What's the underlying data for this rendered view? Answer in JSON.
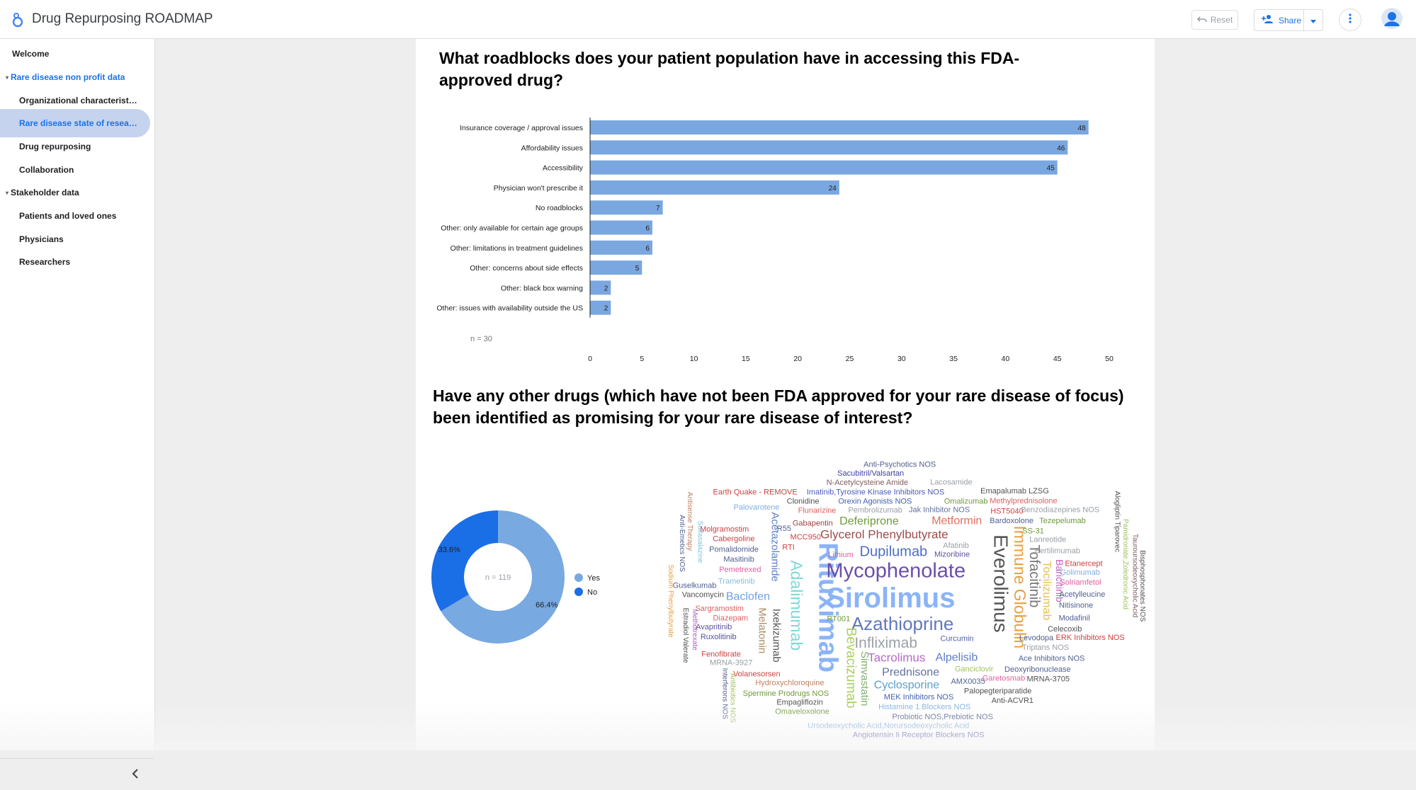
{
  "header": {
    "title": "Drug Repurposing ROADMAP",
    "reset_label": "Reset",
    "share_label": "Share"
  },
  "sidebar": {
    "items": [
      {
        "label": "Welcome",
        "type": "page",
        "level": 0
      },
      {
        "label": "Rare disease non profit data",
        "type": "section",
        "expanded": true,
        "active": true
      },
      {
        "label": "Organizational characteristi...",
        "type": "page",
        "level": 1
      },
      {
        "label": "Rare disease state of resear...",
        "type": "page",
        "level": 1,
        "selected": true
      },
      {
        "label": "Drug repurposing",
        "type": "page",
        "level": 1
      },
      {
        "label": "Collaboration",
        "type": "page",
        "level": 1
      },
      {
        "label": "Stakeholder data",
        "type": "section",
        "expanded": true
      },
      {
        "label": "Patients and loved ones",
        "type": "page",
        "level": 1
      },
      {
        "label": "Physicians",
        "type": "page",
        "level": 1
      },
      {
        "label": "Researchers",
        "type": "page",
        "level": 1
      }
    ]
  },
  "report": {
    "q1_title": "What roadblocks does your patient population have in accessing this FDA-approved drug?",
    "q1_note": "n = 30",
    "q2_title": "Have any other drugs (which have not been FDA approved for your rare disease of focus) been identified as promising for your rare disease of interest?",
    "donut_center": "n = 119"
  },
  "colors": {
    "bar": "#7aa7df",
    "yes": "#78a9e0",
    "no": "#1a6ee6",
    "accent": "#1a73e8"
  },
  "chart_data": [
    {
      "type": "bar",
      "orientation": "horizontal",
      "categories": [
        "Insurance coverage / approval issues",
        "Affordability issues",
        "Accessibility",
        "Physician won't prescribe it",
        "No roadblocks",
        "Other: only available for certain age groups",
        "Other: limitations in treatment guidelines",
        "Other: concerns about side effects",
        "Other: black box warning",
        "Other: issues with availability outside the US"
      ],
      "values": [
        48,
        46,
        45,
        24,
        7,
        6,
        6,
        5,
        2,
        2
      ],
      "xlim": [
        0,
        50
      ],
      "xticks": [
        0,
        5,
        10,
        15,
        20,
        25,
        30,
        35,
        40,
        45,
        50
      ]
    },
    {
      "type": "pie",
      "donut": true,
      "categories": [
        "Yes",
        "No"
      ],
      "values": [
        66.4,
        33.6
      ],
      "labels": [
        "66.4%",
        "33.6%"
      ],
      "legend": "right"
    }
  ],
  "wordcloud": {
    "words": [
      {
        "t": "Sirolimus",
        "s": 40,
        "c": "#8ab4f8",
        "b": 1
      },
      {
        "t": "Rituximab",
        "s": 38,
        "c": "#8ab4f8",
        "b": 1,
        "v": 1
      },
      {
        "t": "Mycophenolate",
        "s": 29,
        "c": "#6b4ea8"
      },
      {
        "t": "Everolimus",
        "s": 28,
        "c": "#555555",
        "v": 1
      },
      {
        "t": "Azathioprine",
        "s": 26,
        "c": "#6478b8"
      },
      {
        "t": "Immune Globulin",
        "s": 23,
        "c": "#e8a040",
        "v": 1
      },
      {
        "t": "Adalimumab",
        "s": 23,
        "c": "#7fd8d8",
        "v": 1
      },
      {
        "t": "Infliximab",
        "s": 21,
        "c": "#9aa0a6"
      },
      {
        "t": "Dupilumab",
        "s": 20,
        "c": "#4a6ec6"
      },
      {
        "t": "Bevacizumab",
        "s": 19,
        "c": "#a8d060",
        "v": 1
      },
      {
        "t": "Tofacitinib",
        "s": 20,
        "c": "#777777",
        "v": 1
      },
      {
        "t": "Glycerol Phenylbutyrate",
        "s": 17,
        "c": "#9c4c4c"
      },
      {
        "t": "Tacrolimus",
        "s": 17,
        "c": "#b46ac8"
      },
      {
        "t": "Alpelisib",
        "s": 16,
        "c": "#5c7cc8"
      },
      {
        "t": "Prednisone",
        "s": 16,
        "c": "#6070a0"
      },
      {
        "t": "Deferiprone",
        "s": 16,
        "c": "#6f9a3a"
      },
      {
        "t": "Metformin",
        "s": 16,
        "c": "#e07060"
      },
      {
        "t": "Cyclosporine",
        "s": 16,
        "c": "#5aa0d0"
      },
      {
        "t": "Baclofen",
        "s": 16,
        "c": "#6fa0e0"
      },
      {
        "t": "Tocilizumab",
        "s": 16,
        "c": "#e8c050",
        "v": 1
      },
      {
        "t": "Simvastatin",
        "s": 15,
        "c": "#80b070",
        "v": 1
      },
      {
        "t": "Ixekizumab",
        "s": 15,
        "c": "#555555",
        "v": 1
      },
      {
        "t": "Acetazolamide",
        "s": 15,
        "c": "#6080c0",
        "v": 1
      },
      {
        "t": "Melatonin",
        "s": 15,
        "c": "#a89060",
        "v": 1
      },
      {
        "t": "Baricitinib",
        "s": 14,
        "c": "#c060c0",
        "v": 1
      },
      {
        "t": "Lithium",
        "s": 11,
        "c": "#e060a0"
      },
      {
        "t": "Mizoribine",
        "s": 11,
        "c": "#6050a0"
      },
      {
        "t": "Curcumin",
        "s": 11,
        "c": "#5060a0"
      },
      {
        "t": "Ganciclovir",
        "s": 11,
        "c": "#a0c060"
      },
      {
        "t": "Pembrolizumab",
        "s": 11,
        "c": "#9aa0a6"
      },
      {
        "t": "Jak Inhibitor NOS",
        "s": 11,
        "c": "#6070a0"
      },
      {
        "t": "MCC950",
        "s": 11,
        "c": "#d04040"
      },
      {
        "t": "Orexin Agonists NOS",
        "s": 11,
        "c": "#4060b0"
      },
      {
        "t": "MEK Inhibitors NOS",
        "s": 11,
        "c": "#4060b0"
      },
      {
        "t": "Imatinib,Tyrosine Kinase Inhibitors NOS",
        "s": 11,
        "c": "#4a5ab8"
      },
      {
        "t": "Gabapentin",
        "s": 11,
        "c": "#a04040"
      },
      {
        "t": "AMX0035",
        "s": 11,
        "c": "#506090"
      },
      {
        "t": "Trametinib",
        "s": 11,
        "c": "#80c0e0"
      },
      {
        "t": "Hydroxychloroquine",
        "s": 11,
        "c": "#c08060"
      },
      {
        "t": "Levodopa",
        "s": 11,
        "c": "#506090"
      },
      {
        "t": "Flunarizine",
        "s": 11,
        "c": "#e06060"
      },
      {
        "t": "Histamine 1 Blockers NOS",
        "s": 11,
        "c": "#80b0e0"
      },
      {
        "t": "Pemetrexed",
        "s": 11,
        "c": "#e060a0"
      },
      {
        "t": "Omalizumab",
        "s": 11,
        "c": "#6f9a3a"
      },
      {
        "t": "Ace Inhibitors NOS",
        "s": 11,
        "c": "#506090"
      },
      {
        "t": "Deoxyribonuclease",
        "s": 11,
        "c": "#506090"
      },
      {
        "t": "Spermine Prodrugs NOS",
        "s": 11,
        "c": "#6f9a3a"
      },
      {
        "t": "N-Acetylcysteine Amide",
        "s": 11,
        "c": "#806060"
      },
      {
        "t": "Garetosmab",
        "s": 11,
        "c": "#e060a0"
      },
      {
        "t": "Triptans NOS",
        "s": 11,
        "c": "#9aa0a6"
      },
      {
        "t": "Sargramostim",
        "s": 11,
        "c": "#e06060"
      },
      {
        "t": "Masitinib",
        "s": 11,
        "c": "#506090"
      },
      {
        "t": "Diazepam",
        "s": 11,
        "c": "#e06060"
      },
      {
        "t": "Afatinib",
        "s": 11,
        "c": "#9aa0a6"
      },
      {
        "t": "Palopegteriparatide",
        "s": 11,
        "c": "#505050"
      },
      {
        "t": "RT001",
        "s": 11,
        "c": "#6f9a3a"
      },
      {
        "t": "Lanreotide",
        "s": 11,
        "c": "#9aa0a6"
      },
      {
        "t": "Pomalidomide",
        "s": 11,
        "c": "#506090"
      },
      {
        "t": "Bardoxolone",
        "s": 11,
        "c": "#506090"
      },
      {
        "t": "Ruxolitinib",
        "s": 11,
        "c": "#5050a0"
      },
      {
        "t": "HST5040",
        "s": 11,
        "c": "#d04040"
      },
      {
        "t": "Bertilimumab",
        "s": 11,
        "c": "#9aa0a6"
      },
      {
        "t": "Solriamfetol",
        "s": 11,
        "c": "#e060a0"
      },
      {
        "t": "Clonidine",
        "s": 11,
        "c": "#505050"
      },
      {
        "t": "RTI",
        "s": 11,
        "c": "#d04040"
      },
      {
        "t": "Probiotic NOS,Prebiotic NOS",
        "s": 11,
        "c": "#506090"
      },
      {
        "t": "SS-31",
        "s": 11,
        "c": "#6f9a3a"
      },
      {
        "t": "Volanesorsen",
        "s": 11,
        "c": "#d04040"
      },
      {
        "t": "Celecoxib",
        "s": 11,
        "c": "#505050"
      },
      {
        "t": "Nitisinone",
        "s": 11,
        "c": "#506090"
      },
      {
        "t": "Cabergoline",
        "s": 11,
        "c": "#d04040"
      },
      {
        "t": "Acetylleucine",
        "s": 11,
        "c": "#506090"
      },
      {
        "t": "Sacubitril/Valsartan",
        "s": 11,
        "c": "#4040a0"
      },
      {
        "t": "Fenofibrate",
        "s": 11,
        "c": "#d04040"
      },
      {
        "t": "Modafinil",
        "s": 11,
        "c": "#506090"
      },
      {
        "t": "Golimumab",
        "s": 11,
        "c": "#80b0e0"
      },
      {
        "t": "R55",
        "s": 11,
        "c": "#506090"
      },
      {
        "t": "Vancomycin",
        "s": 11,
        "c": "#505050"
      },
      {
        "t": "Empagliflozin",
        "s": 11,
        "c": "#505050"
      },
      {
        "t": "Lacosamide",
        "s": 11,
        "c": "#9aa0a6"
      },
      {
        "t": "Etanercept",
        "s": 11,
        "c": "#d04040"
      },
      {
        "t": "MRNA-3705",
        "s": 11,
        "c": "#505050"
      },
      {
        "t": "Ursodeoxycholic Acid,Norursodeoxycholic Acid",
        "s": 11,
        "c": "#80b0e0"
      },
      {
        "t": "Avapritinib",
        "s": 11,
        "c": "#6050a0"
      },
      {
        "t": "Molgramostim",
        "s": 11,
        "c": "#d04040"
      },
      {
        "t": "Methylprednisolone",
        "s": 11,
        "c": "#e06060"
      },
      {
        "t": "Omaveloxolone",
        "s": 11,
        "c": "#6f9a3a"
      },
      {
        "t": "Anti-ACVR1",
        "s": 11,
        "c": "#505050"
      },
      {
        "t": "Anti-Psychotics NOS",
        "s": 11,
        "c": "#506090"
      },
      {
        "t": "Benzodiazepines NOS",
        "s": 11,
        "c": "#9aa0a6"
      },
      {
        "t": "Palovarotene",
        "s": 11,
        "c": "#80b0e0"
      },
      {
        "t": "Emapalumab LZSG",
        "s": 11,
        "c": "#505050"
      },
      {
        "t": "Angiotensin Ii Receptor Blockers NOS",
        "s": 11,
        "c": "#4040a0"
      },
      {
        "t": "MRNA-3927",
        "s": 11,
        "c": "#9aa0a6"
      },
      {
        "t": "Guselkumab",
        "s": 11,
        "c": "#506090"
      },
      {
        "t": "Tezepelumab",
        "s": 11,
        "c": "#6f9a3a"
      },
      {
        "t": "Earth Quake - REMOVE",
        "s": 11,
        "c": "#d04040"
      },
      {
        "t": "ERK Inhibitors NOS",
        "s": 11,
        "c": "#d04040"
      },
      {
        "t": "Methotrexate",
        "s": 10,
        "c": "#b060c0",
        "v": 1
      },
      {
        "t": "Sulfasalazine",
        "s": 10,
        "c": "#80c0e0",
        "v": 1
      },
      {
        "t": "Pamidronate,Zoledronic Acid",
        "s": 10,
        "c": "#a0c060",
        "v": 1
      },
      {
        "t": "Sodium Phenylbutyrate",
        "s": 10,
        "c": "#e8a040",
        "v": 1
      },
      {
        "t": "Tauroursodeoxycholic Acid",
        "s": 10,
        "c": "#806060",
        "v": 1
      },
      {
        "t": "Estradiol Valerate",
        "s": 10,
        "c": "#505050",
        "v": 1
      },
      {
        "t": "Antisense Therapy",
        "s": 10,
        "c": "#c08060",
        "v": 1
      },
      {
        "t": "Bisphosphonates NOS",
        "s": 10,
        "c": "#505050",
        "v": 1
      },
      {
        "t": "Alogliptin Tiparovec",
        "s": 10,
        "c": "#505050",
        "v": 1
      },
      {
        "t": "Anti-Emetics NOS",
        "s": 10,
        "c": "#506090",
        "v": 1
      },
      {
        "t": "Interferons NOS",
        "s": 10,
        "c": "#506090",
        "v": 1
      },
      {
        "t": "Antibiotics NOS",
        "s": 10,
        "c": "#a0c060",
        "v": 1
      }
    ]
  }
}
